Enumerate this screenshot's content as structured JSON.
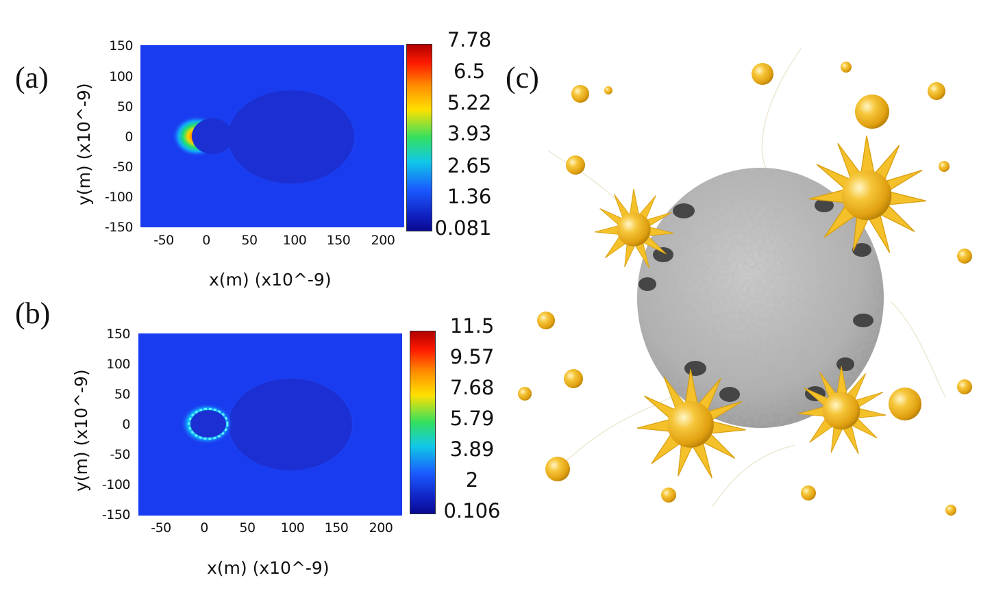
{
  "panels": {
    "a": {
      "letter": "(a)",
      "yticks": [
        "150",
        "100",
        "50",
        "0",
        "-50",
        "-100",
        "-150"
      ],
      "xticks": [
        "-50",
        "0",
        "50",
        "100",
        "150",
        "200"
      ],
      "xlabel": "x(m) (x10^-9)",
      "ylabel": "y(m) (x10^-9)",
      "colorbar": [
        "7.78",
        "6.5",
        "5.22",
        "3.93",
        "2.65",
        "1.36",
        "0.081"
      ]
    },
    "b": {
      "letter": "(b)",
      "yticks": [
        "150",
        "100",
        "50",
        "0",
        "-50",
        "-100",
        "-150"
      ],
      "xticks": [
        "-50",
        "0",
        "50",
        "100",
        "150",
        "200"
      ],
      "xlabel": "x(m) (x10^-9)",
      "ylabel": "y(m) (x10^-9)",
      "colorbar": [
        "11.5",
        "9.57",
        "7.68",
        "5.79",
        "3.89",
        "2",
        "0.106"
      ]
    },
    "c": {
      "letter": "(c)"
    }
  },
  "colors": {
    "field_bg": "#1a3cf0",
    "field_dark": "#1b2ed0",
    "gold": "#f2b81e",
    "sphere_gray": "#b4b4b4"
  }
}
